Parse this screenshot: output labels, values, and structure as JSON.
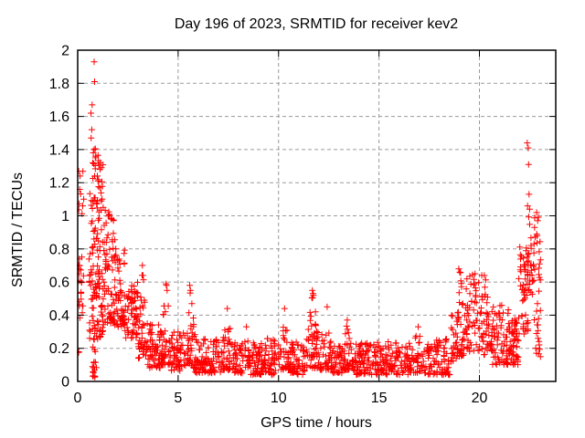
{
  "window": {
    "title": "Day 196 of 2023, SRMTID for receiver kev2"
  },
  "chart_data": {
    "type": "scatter",
    "title": "Day 196 of 2023, SRMTID for receiver kev2",
    "xlabel": "GPS time / hours",
    "ylabel": "SRMTID / TECUs",
    "xlim": [
      0,
      23.8
    ],
    "ylim": [
      0,
      2
    ],
    "xticks": [
      0,
      5,
      10,
      15,
      20
    ],
    "xtick_labels": [
      "0",
      "5",
      "10",
      "15",
      "20"
    ],
    "yticks": [
      0,
      0.2,
      0.4,
      0.6,
      0.8,
      1,
      1.2,
      1.4,
      1.6,
      1.8,
      2
    ],
    "ytick_labels": [
      "0",
      "0.2",
      "0.4",
      "0.6",
      "0.8",
      "1",
      "1.2",
      "1.4",
      "1.6",
      "1.8",
      "2"
    ],
    "grid": true,
    "grid_style": {
      "color": "#9a9a9a",
      "dash": "4,3"
    },
    "legend": "none",
    "marker": {
      "shape": "plus",
      "color": "#ff0000",
      "size": 7,
      "stroke_width": 1
    },
    "points": [
      [
        0.82,
        1.93
      ],
      [
        0.84,
        1.81
      ],
      [
        0.72,
        1.67
      ],
      [
        0.66,
        1.62
      ],
      [
        0.7,
        1.52
      ],
      [
        0.67,
        1.47
      ],
      [
        0.82,
        1.4
      ],
      [
        0.78,
        1.38
      ],
      [
        0.9,
        1.36
      ],
      [
        0.05,
        1.27
      ],
      [
        0.12,
        1.24
      ],
      [
        0.98,
        1.24
      ],
      [
        1.02,
        1.21
      ],
      [
        0.3,
        1.1
      ],
      [
        0.25,
        1.06
      ],
      [
        0.08,
        0.74
      ],
      [
        0.04,
        0.7
      ],
      [
        3.22,
        0.7
      ],
      [
        3.25,
        0.64
      ],
      [
        4.42,
        0.58
      ],
      [
        4.45,
        0.55
      ],
      [
        5.58,
        0.58
      ],
      [
        5.61,
        0.55
      ],
      [
        7.45,
        0.44
      ],
      [
        8.4,
        0.33
      ],
      [
        10.3,
        0.44
      ],
      [
        11.68,
        0.55
      ],
      [
        11.72,
        0.53
      ],
      [
        12.42,
        0.45
      ],
      [
        13.42,
        0.37
      ],
      [
        16.95,
        0.33
      ],
      [
        18.97,
        0.68
      ],
      [
        19.02,
        0.66
      ],
      [
        19.78,
        0.65
      ],
      [
        20.12,
        0.64
      ],
      [
        22.38,
        1.44
      ],
      [
        22.43,
        1.41
      ],
      [
        22.45,
        1.31
      ],
      [
        22.47,
        1.13
      ],
      [
        22.4,
        1.06
      ],
      [
        22.5,
        1.04
      ],
      [
        22.85,
        1.02
      ],
      [
        22.9,
        0.97
      ]
    ],
    "density_bands_schema": [
      "x_start",
      "x_end",
      "count",
      "y_min",
      "y_max",
      "low_bias",
      "peaked"
    ],
    "density_bands": [
      [
        0.02,
        0.35,
        22,
        0.38,
        0.78,
        1.0,
        0
      ],
      [
        0.02,
        0.3,
        6,
        1.0,
        1.28,
        1.0,
        0
      ],
      [
        0.03,
        0.1,
        2,
        0.17,
        0.2,
        1.0,
        0
      ],
      [
        0.55,
        1.35,
        140,
        0.25,
        1.32,
        1.35,
        0
      ],
      [
        0.7,
        0.95,
        16,
        0.02,
        0.22,
        1.0,
        0
      ],
      [
        0.85,
        1.15,
        8,
        1.28,
        1.42,
        1.2,
        0
      ],
      [
        1.35,
        1.85,
        65,
        0.35,
        1.05,
        1.45,
        0
      ],
      [
        1.85,
        2.35,
        58,
        0.33,
        0.82,
        1.35,
        0
      ],
      [
        2.35,
        3.0,
        60,
        0.26,
        0.6,
        1.3,
        0
      ],
      [
        3.0,
        3.45,
        45,
        0.14,
        0.7,
        1.6,
        1
      ],
      [
        3.45,
        4.15,
        60,
        0.08,
        0.36,
        1.4,
        0
      ],
      [
        4.15,
        4.65,
        48,
        0.1,
        0.6,
        1.6,
        1
      ],
      [
        4.65,
        5.35,
        55,
        0.06,
        0.3,
        1.35,
        0
      ],
      [
        5.35,
        5.85,
        42,
        0.08,
        0.6,
        1.7,
        1
      ],
      [
        5.85,
        7.15,
        95,
        0.05,
        0.26,
        1.35,
        0
      ],
      [
        7.15,
        7.75,
        48,
        0.07,
        0.45,
        1.5,
        1
      ],
      [
        7.75,
        8.25,
        40,
        0.05,
        0.24,
        1.3,
        0
      ],
      [
        8.25,
        8.6,
        22,
        0.08,
        0.34,
        1.3,
        1
      ],
      [
        8.6,
        10.05,
        110,
        0.04,
        0.26,
        1.4,
        0
      ],
      [
        10.05,
        10.55,
        38,
        0.07,
        0.44,
        1.5,
        1
      ],
      [
        10.55,
        11.35,
        62,
        0.04,
        0.24,
        1.3,
        0
      ],
      [
        11.35,
        12.05,
        58,
        0.08,
        0.56,
        1.7,
        1
      ],
      [
        12.05,
        12.65,
        42,
        0.07,
        0.46,
        1.55,
        1
      ],
      [
        12.65,
        13.15,
        36,
        0.05,
        0.24,
        1.3,
        0
      ],
      [
        13.15,
        13.75,
        46,
        0.07,
        0.38,
        1.5,
        1
      ],
      [
        13.75,
        16.55,
        200,
        0.04,
        0.24,
        1.35,
        0
      ],
      [
        16.55,
        17.35,
        48,
        0.05,
        0.33,
        1.45,
        1
      ],
      [
        17.35,
        18.55,
        85,
        0.04,
        0.26,
        1.35,
        0
      ],
      [
        18.55,
        18.85,
        20,
        0.12,
        0.4,
        1.2,
        0
      ],
      [
        18.85,
        19.25,
        40,
        0.15,
        0.68,
        1.5,
        1
      ],
      [
        19.25,
        20.05,
        58,
        0.18,
        0.66,
        1.25,
        0
      ],
      [
        20.05,
        20.65,
        52,
        0.16,
        0.64,
        1.3,
        0
      ],
      [
        20.65,
        21.45,
        62,
        0.1,
        0.46,
        1.35,
        0
      ],
      [
        21.45,
        21.95,
        55,
        0.1,
        0.38,
        1.2,
        0
      ],
      [
        21.95,
        22.45,
        48,
        0.28,
        0.82,
        1.15,
        0
      ],
      [
        22.35,
        22.75,
        32,
        0.52,
        1.06,
        1.1,
        0
      ],
      [
        22.65,
        23.05,
        26,
        0.3,
        1.0,
        1.25,
        0
      ],
      [
        22.75,
        23.05,
        10,
        0.14,
        0.34,
        1.0,
        0
      ]
    ],
    "axis_color": "#000000",
    "background": "#ffffff"
  }
}
